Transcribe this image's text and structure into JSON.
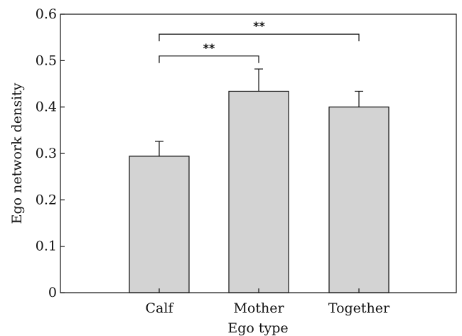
{
  "chart_data": {
    "type": "bar",
    "categories": [
      "Calf",
      "Mother",
      "Together"
    ],
    "values": [
      0.294,
      0.434,
      0.4
    ],
    "errors": [
      0.032,
      0.048,
      0.034
    ],
    "xlabel": "Ego type",
    "ylabel": "Ego network density",
    "ylim": [
      0,
      0.6
    ],
    "yticks": [
      "0",
      "0.1",
      "0.2",
      "0.3",
      "0.4",
      "0.5",
      "0.6"
    ],
    "bar_color": "#d3d3d3",
    "grid": false,
    "significance": [
      {
        "from": "Calf",
        "to": "Mother",
        "label": "**",
        "y": 0.51
      },
      {
        "from": "Calf",
        "to": "Together",
        "label": "**",
        "y": 0.557
      }
    ]
  }
}
